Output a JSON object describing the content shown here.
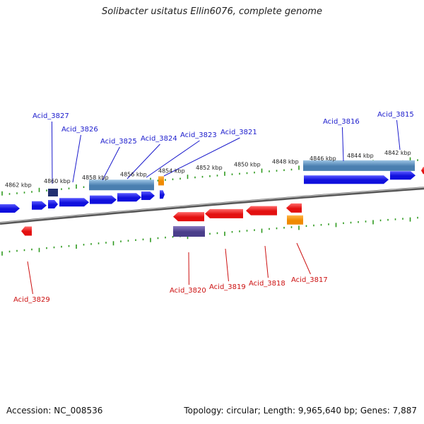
{
  "title": "Solibacter usitatus Ellin6076, complete genome",
  "footer": {
    "accession": "Accession: NC_008536",
    "summary": "Topology: circular; Length: 9,965,640 bp; Genes: 7,887"
  },
  "colors": {
    "forward_cds": "#1010dd",
    "reverse_cds": "#e31010",
    "rna_orange": "#f08a00",
    "forward_ortholog": "#4a7fb0",
    "reverse_ortholog": "#4a3e8a",
    "backbone": "#777777",
    "tick": "#2e9a1e",
    "forward_label": "#1a1acc",
    "reverse_label": "#cc1010"
  },
  "scale_labels": [
    "4862 kbp",
    "4860 kbp",
    "4858 kbp",
    "4856 kbp",
    "4854 kbp",
    "4852 kbp",
    "4850 kbp",
    "4848 kbp",
    "4846 kbp",
    "4844 kbp",
    "4842 kbp"
  ],
  "forward_labels": [
    "Acid_3827",
    "Acid_3826",
    "Acid_3825",
    "Acid_3824",
    "Acid_3823",
    "Acid_3821",
    "Acid_3816",
    "Acid_3815"
  ],
  "reverse_labels": [
    "Acid_3829",
    "Acid_3820",
    "Acid_3819",
    "Acid_3818",
    "Acid_3817"
  ]
}
